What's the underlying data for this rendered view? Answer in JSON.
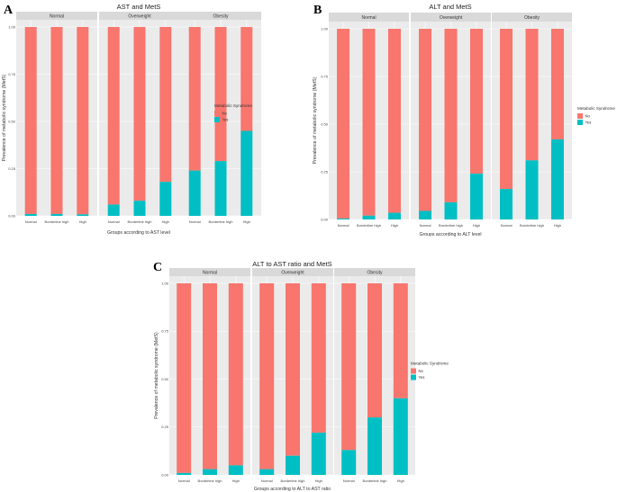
{
  "colors": {
    "no": "#F8766D",
    "yes": "#00BFC4",
    "panel_bg": "#EBEBEB",
    "strip_bg": "#D9D9D9",
    "grid": "#FFFFFF"
  },
  "chart_data": [
    {
      "letter": "A",
      "type": "bar",
      "stacked": true,
      "title": "AST and MetS",
      "xlabel": "Groups according to AST level",
      "ylabel": "Prevalence of metabolic syndrome (MetS)",
      "ylim": [
        0,
        1
      ],
      "yticks": [
        "0.00",
        "0.25",
        "0.50",
        "0.75",
        "1.00"
      ],
      "facets": [
        "Normal",
        "Overweight",
        "Obesity"
      ],
      "categories": [
        "Normal",
        "Borderline high",
        "High"
      ],
      "legend": {
        "title": "Metabolic Syndrome",
        "entries": [
          "No",
          "Yes"
        ],
        "position": "right"
      },
      "series": [
        {
          "name": "Yes",
          "values": [
            [
              0.01,
              0.01,
              0.008
            ],
            [
              0.06,
              0.08,
              0.18
            ],
            [
              0.24,
              0.29,
              0.45
            ]
          ]
        },
        {
          "name": "No",
          "values": [
            [
              0.99,
              0.99,
              0.992
            ],
            [
              0.94,
              0.92,
              0.82
            ],
            [
              0.76,
              0.71,
              0.55
            ]
          ]
        }
      ]
    },
    {
      "letter": "B",
      "type": "bar",
      "stacked": true,
      "title": "ALT and MetS",
      "xlabel": "Groups according to ALT level",
      "ylabel": "Prevalence of metabolic syndrome (MetS)",
      "ylim": [
        0,
        1
      ],
      "yticks": [
        "0.00",
        "0.25",
        "0.50",
        "0.75",
        "1.00"
      ],
      "facets": [
        "Normal",
        "Overweight",
        "Obesity"
      ],
      "categories": [
        "Normal",
        "Borderline high",
        "High"
      ],
      "legend": {
        "title": "Metabolic Syndrome",
        "entries": [
          "No",
          "Yes"
        ],
        "position": "right"
      },
      "series": [
        {
          "name": "Yes",
          "values": [
            [
              0.005,
              0.02,
              0.035
            ],
            [
              0.045,
              0.09,
              0.24
            ],
            [
              0.16,
              0.31,
              0.42
            ]
          ]
        },
        {
          "name": "No",
          "values": [
            [
              0.995,
              0.98,
              0.965
            ],
            [
              0.955,
              0.91,
              0.76
            ],
            [
              0.84,
              0.69,
              0.58
            ]
          ]
        }
      ]
    },
    {
      "letter": "C",
      "type": "bar",
      "stacked": true,
      "title": "ALT to AST ratio and MetS",
      "xlabel": "Groups according to ALT to AST ratio",
      "ylabel": "Prevalence of metabolic syndrome (MetS)",
      "ylim": [
        0,
        1
      ],
      "yticks": [
        "0.00",
        "0.25",
        "0.50",
        "0.75",
        "1.00"
      ],
      "facets": [
        "Normal",
        "Overweight",
        "Obesity"
      ],
      "categories": [
        "Normal",
        "Borderline high",
        "High"
      ],
      "legend": {
        "title": "Metabolic Syndrome",
        "entries": [
          "No",
          "Yes"
        ],
        "position": "right"
      },
      "series": [
        {
          "name": "Yes",
          "values": [
            [
              0.01,
              0.03,
              0.05
            ],
            [
              0.03,
              0.1,
              0.22
            ],
            [
              0.13,
              0.3,
              0.4
            ]
          ]
        },
        {
          "name": "No",
          "values": [
            [
              0.99,
              0.97,
              0.95
            ],
            [
              0.97,
              0.9,
              0.78
            ],
            [
              0.87,
              0.7,
              0.6
            ]
          ]
        }
      ]
    }
  ]
}
